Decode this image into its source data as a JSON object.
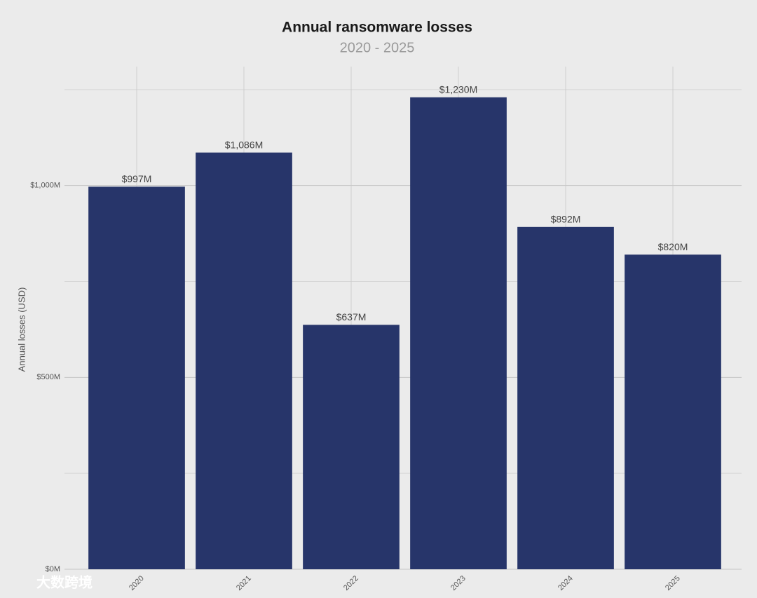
{
  "chart_data": {
    "type": "bar",
    "title": "Annual ransomware losses",
    "subtitle": "2020 - 2025",
    "y_label": "Annual losses (USD)",
    "categories": [
      "2020",
      "2021",
      "2022",
      "2023",
      "2024",
      "2025"
    ],
    "values": [
      997,
      1086,
      637,
      1230,
      892,
      820
    ],
    "value_labels": [
      "$997M",
      "$1,086M",
      "$637M",
      "$1,230M",
      "$892M",
      "$820M"
    ],
    "color": "#27356a",
    "ylim": [
      0,
      1310
    ],
    "yticks": [
      {
        "value": 0,
        "label": "$0M"
      },
      {
        "value": 500,
        "label": "$500M"
      },
      {
        "value": 1000,
        "label": "$1,000M"
      }
    ],
    "minor_yticks": [
      250,
      750,
      1250
    ],
    "grid": true
  },
  "watermark": "大数跨境"
}
